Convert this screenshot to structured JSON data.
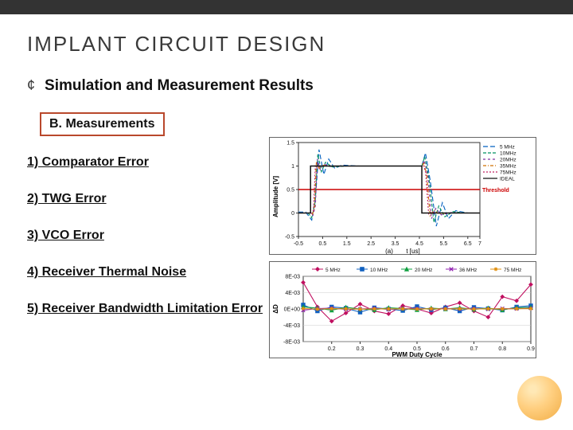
{
  "title_parts": {
    "i": "I",
    "mplant": "MPLANT",
    "sp": "  ",
    "circuit_design": "CIRCUIT DESIGN"
  },
  "title_full": "IMPLANT  CIRCUIT DESIGN",
  "bullet_symbol": "¢",
  "bullet_text": "Simulation and Measurement Results",
  "subheader": "B. Measurements",
  "items": [
    "1) Comparator Error",
    "2) TWG Error",
    "3) VCO Error",
    "4) Receiver Thermal Noise",
    "5) Receiver Bandwidth Limitation Error"
  ],
  "chartA": {
    "type": "line",
    "ylabel": "Amplitude [V]",
    "xlabel": "t [us]",
    "panel_label": "(a)",
    "xlim": [
      -0.5,
      7
    ],
    "ylim": [
      -0.5,
      1.5
    ],
    "xticks": [
      -0.5,
      0.5,
      1.5,
      2.5,
      3.5,
      4.5,
      5.5,
      6.5,
      7
    ],
    "yticks": [
      -0.5,
      0,
      0.5,
      1,
      1.5
    ],
    "threshold": {
      "value": 0.5,
      "label": "Threshold",
      "color": "#cc0000"
    },
    "legend": [
      {
        "label": "5 MHz",
        "color": "#0060c0",
        "dash": "6 3"
      },
      {
        "label": "10MHz",
        "color": "#009060",
        "dash": "4 2"
      },
      {
        "label": "20MHz",
        "color": "#8030a0",
        "dash": "3 3"
      },
      {
        "label": "35MHz",
        "color": "#d07000",
        "dash": "4 2 1 2"
      },
      {
        "label": "75MHz",
        "color": "#c02060",
        "dash": "2 2"
      },
      {
        "label": "IDEAL",
        "color": "#111111",
        "dash": null
      }
    ],
    "ideal_series": [
      [
        -0.5,
        0
      ],
      [
        0,
        0
      ],
      [
        0,
        1
      ],
      [
        4.6,
        1
      ],
      [
        4.6,
        0
      ],
      [
        7,
        0
      ]
    ],
    "osc_series": {
      "5": [
        [
          -0.5,
          0.02
        ],
        [
          -0.2,
          0.02
        ],
        [
          0.05,
          -0.15
        ],
        [
          0.2,
          0.3
        ],
        [
          0.35,
          1.35
        ],
        [
          0.55,
          0.82
        ],
        [
          0.75,
          1.15
        ],
        [
          1.0,
          0.95
        ],
        [
          1.3,
          1.02
        ],
        [
          2.0,
          1.0
        ],
        [
          4.6,
          1.0
        ],
        [
          4.75,
          1.28
        ],
        [
          4.95,
          0.68
        ],
        [
          5.2,
          -0.28
        ],
        [
          5.45,
          0.22
        ],
        [
          5.7,
          -0.12
        ],
        [
          6.0,
          0.05
        ],
        [
          6.5,
          0.0
        ],
        [
          7,
          0.0
        ]
      ],
      "10": [
        [
          -0.5,
          0
        ],
        [
          -0.1,
          0
        ],
        [
          0.05,
          -0.1
        ],
        [
          0.18,
          0.2
        ],
        [
          0.3,
          1.25
        ],
        [
          0.45,
          0.88
        ],
        [
          0.62,
          1.08
        ],
        [
          0.9,
          0.98
        ],
        [
          1.5,
          1.0
        ],
        [
          4.6,
          1.0
        ],
        [
          4.72,
          1.2
        ],
        [
          4.9,
          0.72
        ],
        [
          5.1,
          -0.2
        ],
        [
          5.3,
          0.15
        ],
        [
          5.55,
          -0.08
        ],
        [
          5.9,
          0.03
        ],
        [
          6.4,
          0.0
        ],
        [
          7,
          0.0
        ]
      ],
      "20": [
        [
          -0.5,
          0
        ],
        [
          0,
          0
        ],
        [
          0.1,
          -0.05
        ],
        [
          0.2,
          0.15
        ],
        [
          0.28,
          1.15
        ],
        [
          0.4,
          0.92
        ],
        [
          0.55,
          1.04
        ],
        [
          0.8,
          0.99
        ],
        [
          1.4,
          1.0
        ],
        [
          4.6,
          1.0
        ],
        [
          4.7,
          1.12
        ],
        [
          4.85,
          0.78
        ],
        [
          5.0,
          -0.12
        ],
        [
          5.18,
          0.1
        ],
        [
          5.4,
          -0.04
        ],
        [
          5.8,
          0.01
        ],
        [
          6.3,
          0.0
        ],
        [
          7,
          0.0
        ]
      ],
      "35": [
        [
          -0.5,
          0
        ],
        [
          0,
          0
        ],
        [
          0.08,
          -0.03
        ],
        [
          0.16,
          0.1
        ],
        [
          0.24,
          1.08
        ],
        [
          0.35,
          0.95
        ],
        [
          0.5,
          1.02
        ],
        [
          0.75,
          1.0
        ],
        [
          1.3,
          1.0
        ],
        [
          4.6,
          1.0
        ],
        [
          4.68,
          1.06
        ],
        [
          4.8,
          0.82
        ],
        [
          4.94,
          -0.06
        ],
        [
          5.1,
          0.06
        ],
        [
          5.3,
          -0.02
        ],
        [
          5.7,
          0.0
        ],
        [
          7,
          0.0
        ]
      ],
      "75": [
        [
          -0.5,
          0
        ],
        [
          0,
          0
        ],
        [
          0.05,
          -0.01
        ],
        [
          0.12,
          0.06
        ],
        [
          0.2,
          1.03
        ],
        [
          0.32,
          0.98
        ],
        [
          0.5,
          1.0
        ],
        [
          1.2,
          1.0
        ],
        [
          4.6,
          1.0
        ],
        [
          4.66,
          1.02
        ],
        [
          4.76,
          0.86
        ],
        [
          4.88,
          -0.02
        ],
        [
          5.02,
          0.03
        ],
        [
          5.2,
          0.0
        ],
        [
          7,
          0.0
        ]
      ]
    },
    "axis_color": "#333",
    "grid_color": "#bbb",
    "line_width": 1.1
  },
  "chartB": {
    "type": "line",
    "ylabel": "ΔD",
    "xlabel": "PWM Duty Cycle",
    "xlim": [
      0.1,
      0.9
    ],
    "ylim": [
      -0.008,
      0.008
    ],
    "xticks": [
      0.2,
      0.3,
      0.4,
      0.5,
      0.6,
      0.7,
      0.8,
      0.9
    ],
    "yticks": [
      -0.008,
      -0.004,
      0,
      0.004,
      0.008
    ],
    "ytick_labels": [
      "-8E-03",
      "-4E-03",
      "0E+00",
      "4E-03",
      "8E-03"
    ],
    "axis_color": "#333",
    "grid_color": "#ccc",
    "line_width": 1.1,
    "marker_size": 2.2,
    "legend": [
      {
        "label": "5 MHz",
        "color": "#c01060",
        "marker": "diamond"
      },
      {
        "label": "10 MHz",
        "color": "#1060c0",
        "marker": "square"
      },
      {
        "label": "20 MHz",
        "color": "#10a040",
        "marker": "triangle"
      },
      {
        "label": "36 MHz",
        "color": "#9020b0",
        "marker": "x"
      },
      {
        "label": "75 MHz",
        "color": "#e09010",
        "marker": "star"
      }
    ],
    "x": [
      0.1,
      0.15,
      0.2,
      0.25,
      0.3,
      0.35,
      0.4,
      0.45,
      0.5,
      0.55,
      0.6,
      0.65,
      0.7,
      0.75,
      0.8,
      0.85,
      0.9
    ],
    "series": {
      "5": [
        0.0065,
        0.0005,
        -0.003,
        -0.001,
        0.0012,
        -0.0005,
        -0.0012,
        0.0008,
        0.0,
        -0.001,
        0.0005,
        0.0015,
        -0.0005,
        -0.002,
        0.003,
        0.002,
        0.006
      ],
      "10": [
        0.001,
        -0.0005,
        0.0005,
        0.0002,
        -0.0008,
        0.0003,
        0.0,
        -0.0004,
        0.0006,
        -0.0002,
        0.0003,
        -0.0005,
        0.0004,
        0.0001,
        -0.0003,
        0.0005,
        0.0008
      ],
      "20": [
        0.0005,
        0.0002,
        -0.0003,
        0.0004,
        0.0,
        -0.0002,
        0.0003,
        0.0001,
        -0.0002,
        0.0002,
        0.0,
        0.0003,
        -0.0001,
        0.0002,
        -0.0002,
        0.0003,
        0.0004
      ],
      "36": [
        -0.0003,
        0.0001,
        0.0002,
        -0.0001,
        0.0,
        0.00015,
        -0.0001,
        5e-05,
        0.0001,
        -5e-05,
        0.0001,
        0.0,
        8e-05,
        -5e-05,
        0.0001,
        5e-05,
        0.0002
      ],
      "75": [
        0.0001,
        -5e-05,
        8e-05,
        2e-05,
        -5e-05,
        4e-05,
        0.0,
        3e-05,
        -2e-05,
        4e-05,
        0.0,
        3e-05,
        -2e-05,
        4e-05,
        2e-05,
        5e-05,
        8e-05
      ]
    }
  },
  "colors": {
    "top_bar": "#333333",
    "subheader_border": "#b9482c",
    "decor_circle_inner": "#ffe8b5",
    "decor_circle_outer": "#e8a942"
  }
}
